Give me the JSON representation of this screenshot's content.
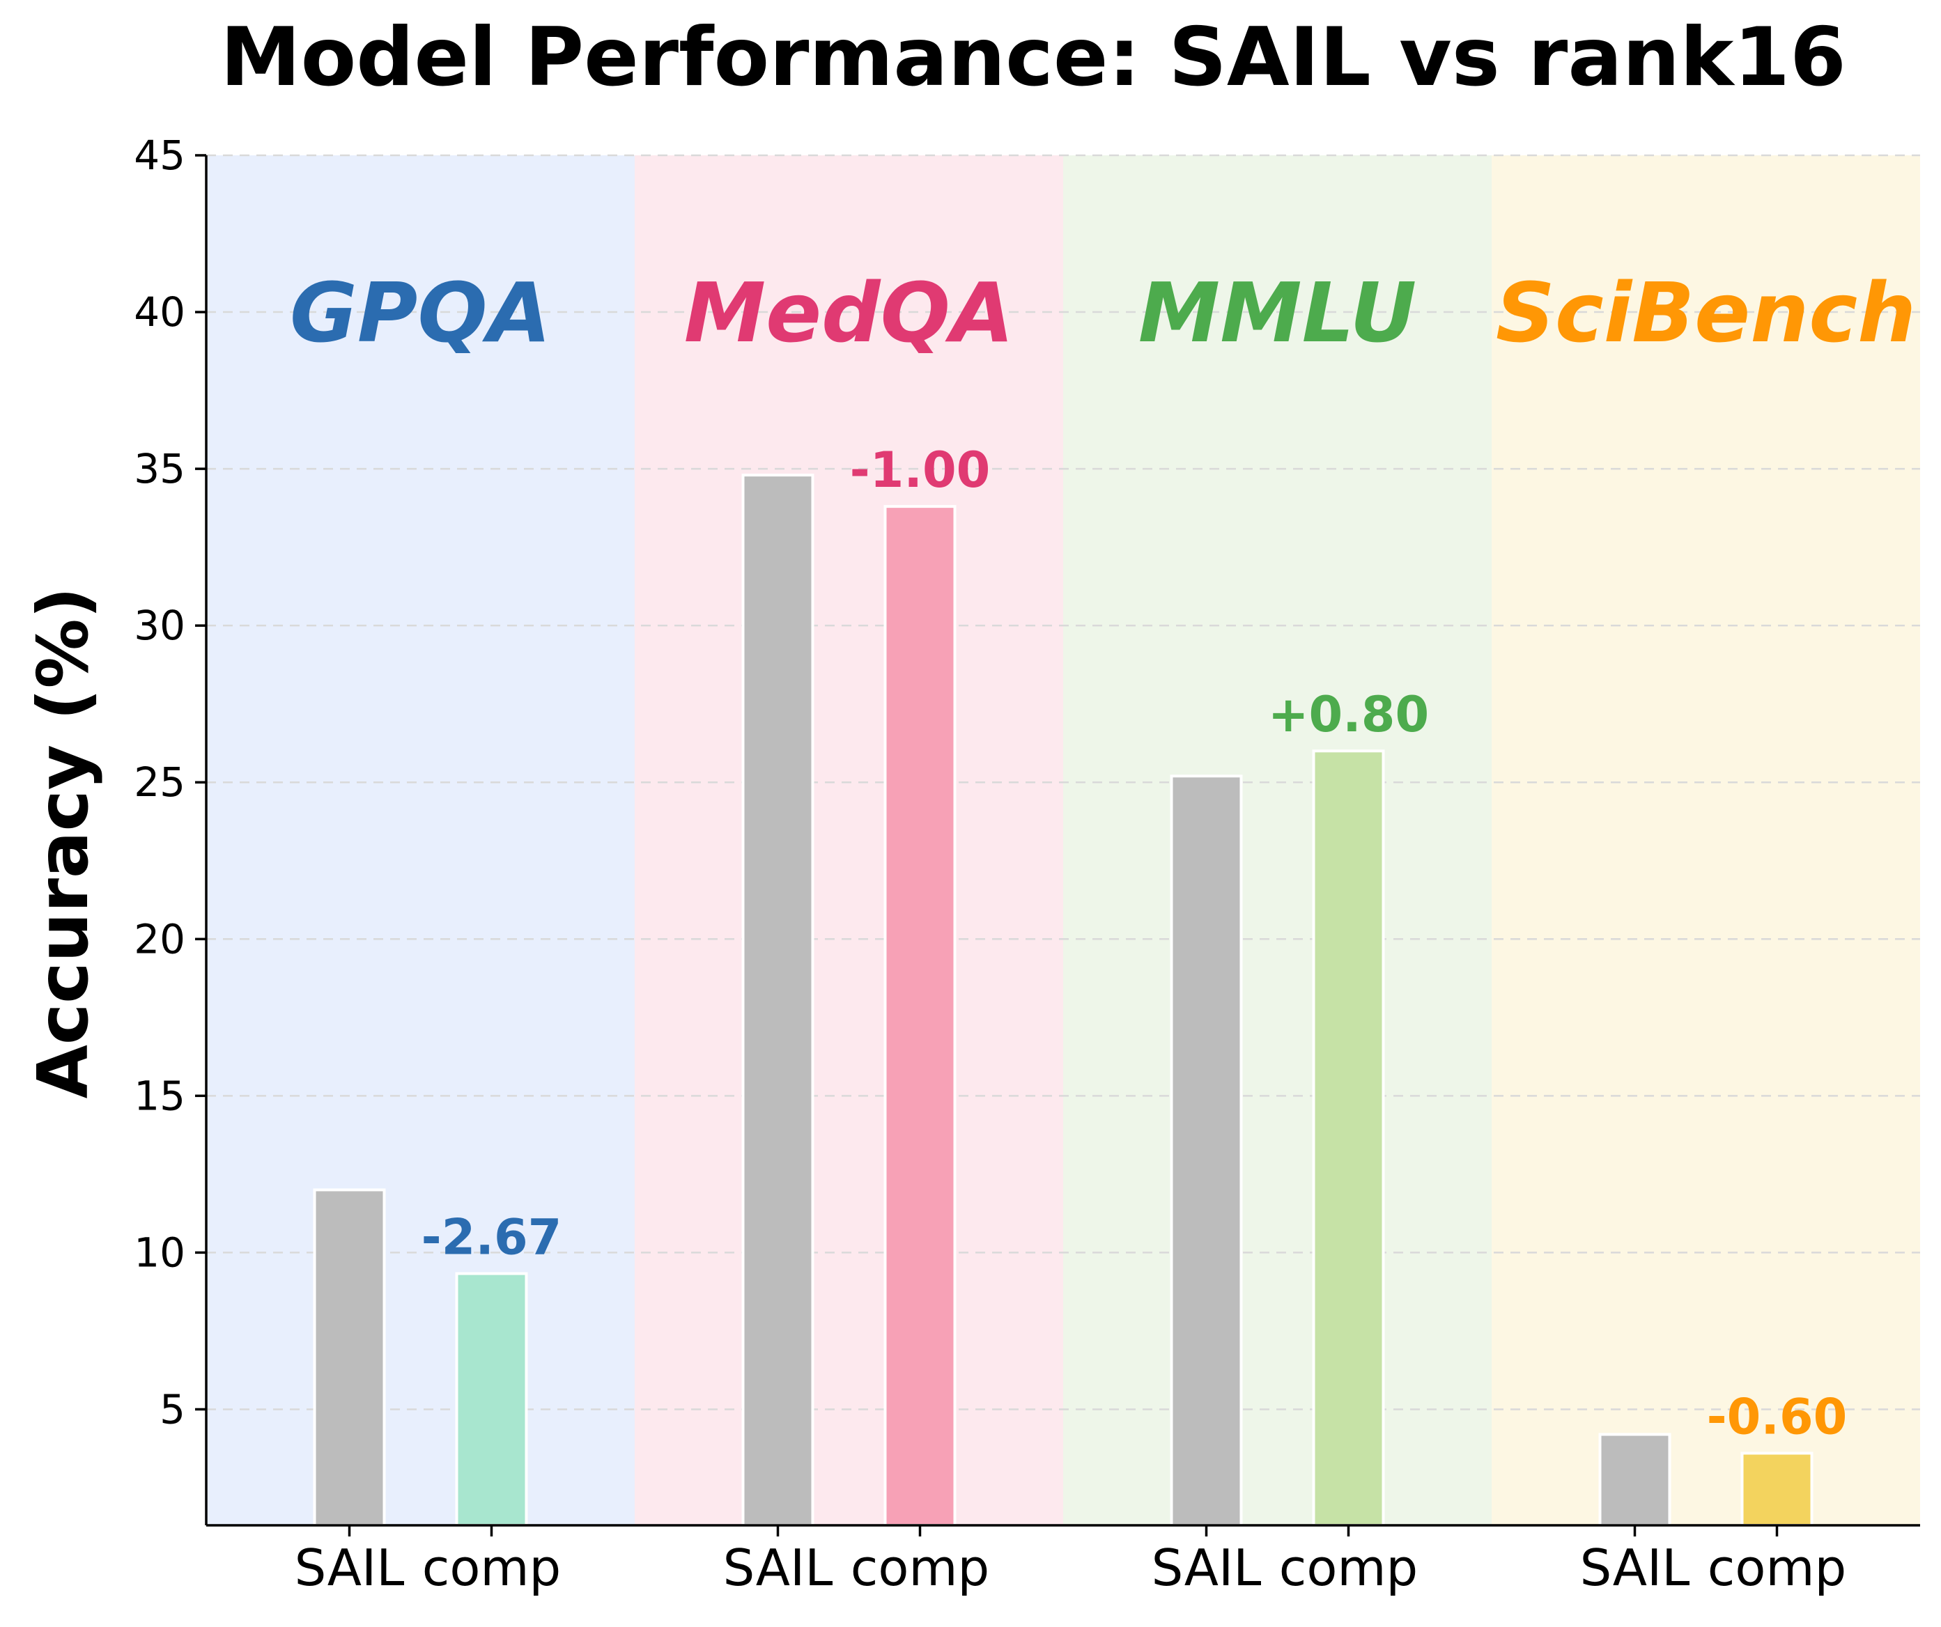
{
  "chart_data": {
    "type": "bar",
    "title": "Model Performance: SAIL vs rank16",
    "xlabel": "",
    "ylabel": "Accuracy (%)",
    "ylim": [
      1.3,
      45
    ],
    "yticks": [
      5,
      10,
      15,
      20,
      25,
      30,
      35,
      40,
      45
    ],
    "grid": true,
    "groups": [
      {
        "name": "GPQA",
        "color": "#2b6cb0",
        "bg": "#e8effd",
        "comp_color": "#a8e6cf",
        "labels": [
          "SAIL",
          "comp"
        ],
        "values": [
          12.0,
          9.33
        ],
        "delta": "-2.67"
      },
      {
        "name": "MedQA",
        "color": "#e03a72",
        "bg": "#fde9ee",
        "comp_color": "#f7a1b6",
        "labels": [
          "SAIL",
          "comp"
        ],
        "values": [
          34.8,
          33.8
        ],
        "delta": "-1.00"
      },
      {
        "name": "MMLU",
        "color": "#4dab4d",
        "bg": "#eef6e9",
        "comp_color": "#c6e2a6",
        "labels": [
          "SAIL",
          "comp"
        ],
        "values": [
          25.2,
          26.0
        ],
        "delta": "+0.80"
      },
      {
        "name": "SciBench",
        "color": "#ff9705",
        "bg": "#fdf7e3",
        "comp_color": "#f3d35e",
        "labels": [
          "SAIL",
          "comp"
        ],
        "values": [
          4.2,
          3.6
        ],
        "delta": "-0.60"
      }
    ],
    "sail_color": "#bcbcbc"
  }
}
